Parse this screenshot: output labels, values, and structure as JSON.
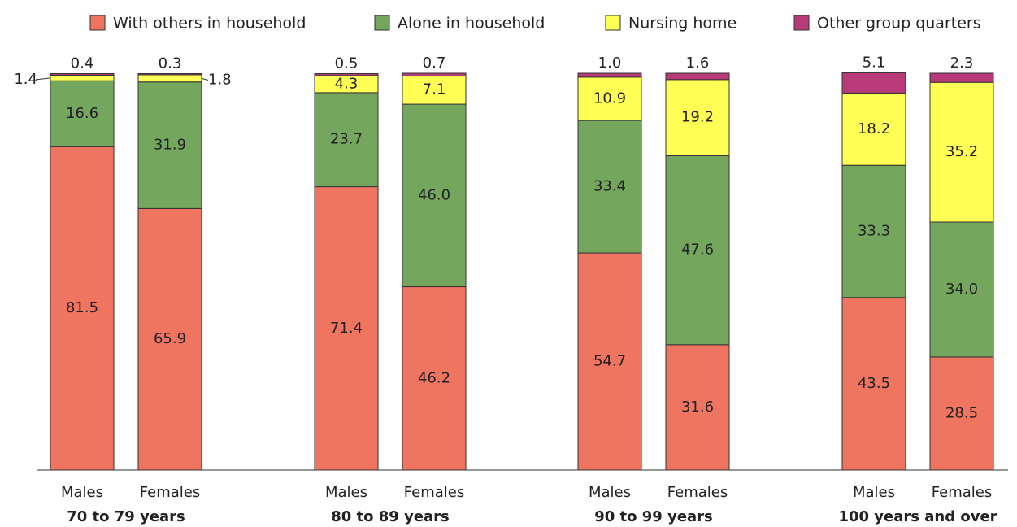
{
  "chart_data": {
    "type": "bar",
    "stacked": true,
    "categories": [
      "Males",
      "Females",
      "Males",
      "Females",
      "Males",
      "Females",
      "Males",
      "Females"
    ],
    "groups": [
      "70 to 79 years",
      "80 to 89 years",
      "90 to 99 years",
      "100 years and over"
    ],
    "ylim": [
      0,
      100
    ],
    "series": [
      {
        "name": "With others in household",
        "color": "#f07560",
        "values": [
          81.5,
          65.9,
          71.4,
          46.2,
          54.7,
          31.6,
          43.5,
          28.5
        ],
        "value_labels": [
          "81.5",
          "65.9",
          "71.4",
          "46.2",
          "54.7",
          "31.6",
          "43.5",
          "28.5"
        ]
      },
      {
        "name": "Alone in household",
        "color": "#74a65e",
        "values": [
          16.6,
          31.9,
          23.7,
          46.0,
          33.4,
          47.6,
          33.3,
          34.0
        ],
        "value_labels": [
          "16.6",
          "31.9",
          "23.7",
          "46.0",
          "33.4",
          "47.6",
          "33.3",
          "34.0"
        ]
      },
      {
        "name": "Nursing home",
        "color": "#ffff55",
        "values": [
          1.4,
          1.8,
          4.3,
          7.1,
          10.9,
          19.2,
          18.2,
          35.2
        ],
        "value_labels": [
          "1.4",
          "1.8",
          "4.3",
          "7.1",
          "10.9",
          "19.2",
          "18.2",
          "35.2"
        ]
      },
      {
        "name": "Other group quarters",
        "color": "#b83a78",
        "values": [
          0.4,
          0.3,
          0.5,
          0.7,
          1.0,
          1.6,
          5.1,
          2.3
        ],
        "value_labels": [
          "0.4",
          "0.3",
          "0.5",
          "0.7",
          "1.0",
          "1.6",
          "5.1",
          "2.3"
        ]
      }
    ]
  }
}
